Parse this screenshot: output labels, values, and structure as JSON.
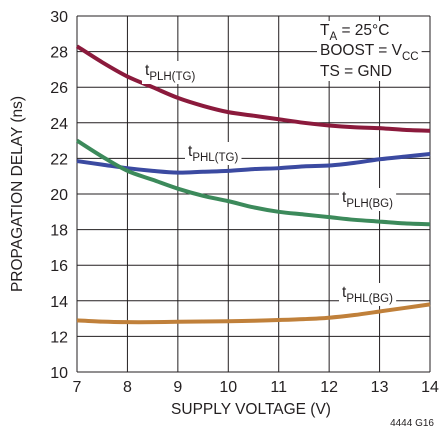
{
  "chart_data": {
    "type": "line",
    "title": "",
    "xlabel": "SUPPLY VOLTAGE (V)",
    "ylabel": "PROPAGATION DELAY (ns)",
    "xlim": [
      7,
      14
    ],
    "ylim": [
      10,
      30
    ],
    "x_ticks": [
      "7",
      "8",
      "9",
      "10",
      "11",
      "12",
      "13",
      "14"
    ],
    "y_ticks": [
      "10",
      "12",
      "14",
      "16",
      "18",
      "20",
      "22",
      "24",
      "26",
      "28",
      "30"
    ],
    "grid": true,
    "series": [
      {
        "name": "tPLH(TG)",
        "label_main": "t",
        "label_sub": "PLH(TG)",
        "color": "#8b1a3c",
        "x": [
          7,
          7.5,
          8,
          8.5,
          9,
          9.5,
          10,
          10.5,
          11,
          11.5,
          12,
          12.5,
          13,
          13.5,
          14
        ],
        "y": [
          28.3,
          27.4,
          26.6,
          26.0,
          25.4,
          24.95,
          24.6,
          24.4,
          24.2,
          24.0,
          23.85,
          23.75,
          23.7,
          23.6,
          23.55
        ]
      },
      {
        "name": "tPHL(TG)",
        "label_main": "t",
        "label_sub": "PHL(TG)",
        "color": "#3b4aa1",
        "x": [
          7,
          7.5,
          8,
          8.5,
          9,
          9.5,
          10,
          10.5,
          11,
          11.5,
          12,
          12.5,
          13,
          13.5,
          14
        ],
        "y": [
          21.85,
          21.65,
          21.45,
          21.3,
          21.2,
          21.25,
          21.3,
          21.4,
          21.45,
          21.55,
          21.6,
          21.75,
          21.95,
          22.1,
          22.25
        ]
      },
      {
        "name": "tPLH(BG)",
        "label_main": "t",
        "label_sub": "PLH(BG)",
        "color": "#3c8a5b",
        "x": [
          7,
          7.5,
          8,
          8.5,
          9,
          9.5,
          10,
          10.5,
          11,
          11.5,
          12,
          12.5,
          13,
          13.5,
          14
        ],
        "y": [
          23.0,
          22.1,
          21.3,
          20.8,
          20.3,
          19.9,
          19.6,
          19.25,
          19.0,
          18.85,
          18.7,
          18.55,
          18.45,
          18.35,
          18.3
        ]
      },
      {
        "name": "tPHL(BG)",
        "label_main": "t",
        "label_sub": "PHL(BG)",
        "color": "#c0803a",
        "x": [
          7,
          7.5,
          8,
          8.5,
          9,
          9.5,
          10,
          10.5,
          11,
          11.5,
          12,
          12.5,
          13,
          13.5,
          14
        ],
        "y": [
          12.9,
          12.83,
          12.8,
          12.8,
          12.82,
          12.84,
          12.85,
          12.88,
          12.92,
          12.97,
          13.05,
          13.2,
          13.4,
          13.6,
          13.8
        ]
      }
    ],
    "conditions": [
      {
        "main": "T",
        "sub": "A",
        "rest": " = 25°C"
      },
      {
        "main": "BOOST = V",
        "sub": "CC",
        "rest": ""
      },
      {
        "main": "TS = GND",
        "sub": "",
        "rest": ""
      }
    ],
    "figure_id": "4444 G16"
  }
}
